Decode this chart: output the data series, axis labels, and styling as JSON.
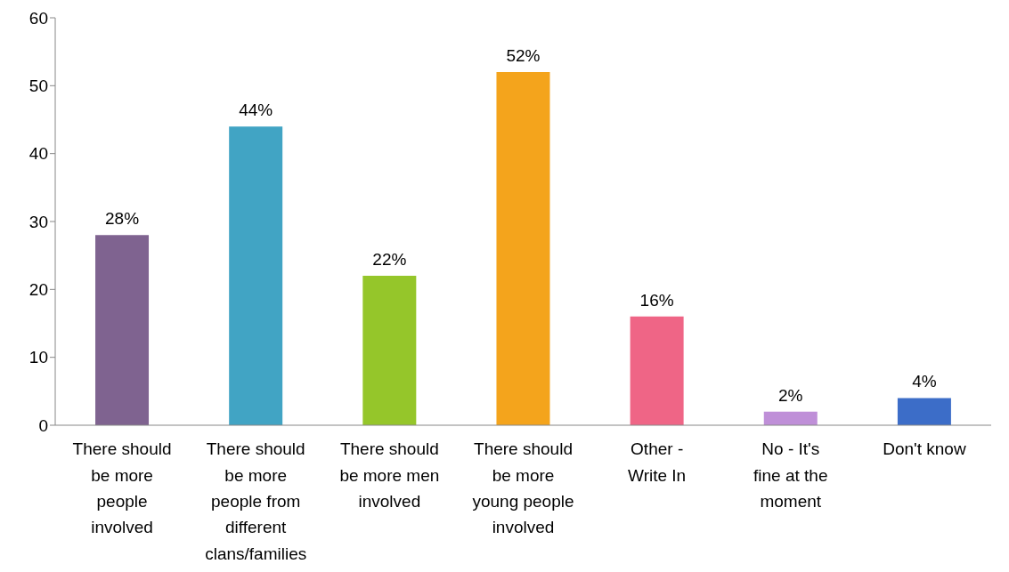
{
  "chart_data": {
    "type": "bar",
    "categories": [
      "There should be more people involved",
      "There should be more people from different clans/families",
      "There should be more men involved",
      "There should be more young people involved",
      "Other - Write In",
      "No - It's fine at the moment",
      "Don't know"
    ],
    "values": [
      28,
      44,
      22,
      52,
      16,
      2,
      4
    ],
    "value_labels": [
      "28%",
      "44%",
      "22%",
      "52%",
      "16%",
      "2%",
      "4%"
    ],
    "colors": [
      "#7f6390",
      "#41a4c4",
      "#95c62a",
      "#f4a41c",
      "#ef6586",
      "#bf8fd8",
      "#3c6dc8"
    ],
    "ylim": [
      0,
      60
    ],
    "yticks": [
      0,
      10,
      20,
      30,
      40,
      50,
      60
    ],
    "grid": false
  }
}
